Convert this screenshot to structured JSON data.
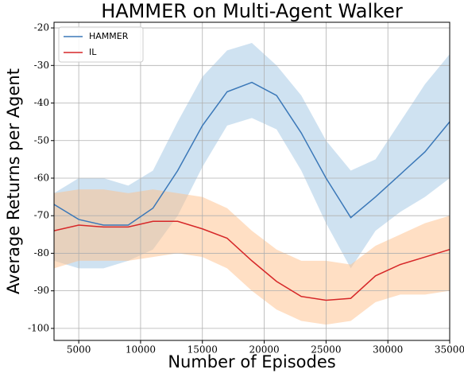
{
  "chart_data": {
    "type": "line",
    "title": "HAMMER on Multi-Agent Walker",
    "x_label": "Number of Episodes",
    "y_label": "Average Returns per Agent",
    "x": [
      3000,
      5000,
      7000,
      9000,
      11000,
      13000,
      15000,
      17000,
      19000,
      21000,
      23000,
      25000,
      27000,
      29000,
      31000,
      33000,
      35000
    ],
    "series": [
      {
        "name": "HAMMER",
        "color": "#3b78b8",
        "band_color": "#9fc5e4",
        "values": [
          -67,
          -71,
          -72.5,
          -72.5,
          -68,
          -58,
          -46,
          -37,
          -34.5,
          -38,
          -48,
          -60,
          -70.5,
          -65,
          -59,
          -53,
          -45
        ],
        "upper": [
          -64,
          -60,
          -60,
          -62,
          -58,
          -45,
          -33,
          -26,
          -24,
          -30,
          -38,
          -50,
          -58,
          -55,
          -45,
          -35,
          -27
        ],
        "lower": [
          -82,
          -84,
          -84,
          -82,
          -79,
          -70,
          -57,
          -46,
          -44,
          -47,
          -58,
          -72,
          -84,
          -74,
          -69,
          -65,
          -60
        ]
      },
      {
        "name": "IL",
        "color": "#d62728",
        "band_color": "#ffc08a",
        "values": [
          -74,
          -72.5,
          -73,
          -73,
          -71.5,
          -71.5,
          -73.5,
          -76,
          -82,
          -87.5,
          -91.5,
          -92.5,
          -92,
          -86,
          -83,
          -81,
          -79
        ],
        "upper": [
          -64,
          -63,
          -63,
          -64,
          -63,
          -64,
          -65,
          -68,
          -74,
          -79,
          -82,
          -82,
          -83,
          -78,
          -75,
          -72,
          -70
        ],
        "lower": [
          -84,
          -82,
          -82,
          -82,
          -81,
          -80,
          -81,
          -84,
          -90,
          -95,
          -98,
          -99,
          -98,
          -93,
          -91,
          -91,
          -90
        ]
      }
    ],
    "xlim": [
      3000,
      35000
    ],
    "ylim": [
      -103.2,
      -18.5
    ],
    "xticks": [
      5000,
      10000,
      15000,
      20000,
      25000,
      30000,
      35000
    ],
    "yticks": [
      -100,
      -90,
      -80,
      -70,
      -60,
      -50,
      -40,
      -30,
      -20
    ],
    "grid": true,
    "legend": "upper left"
  }
}
